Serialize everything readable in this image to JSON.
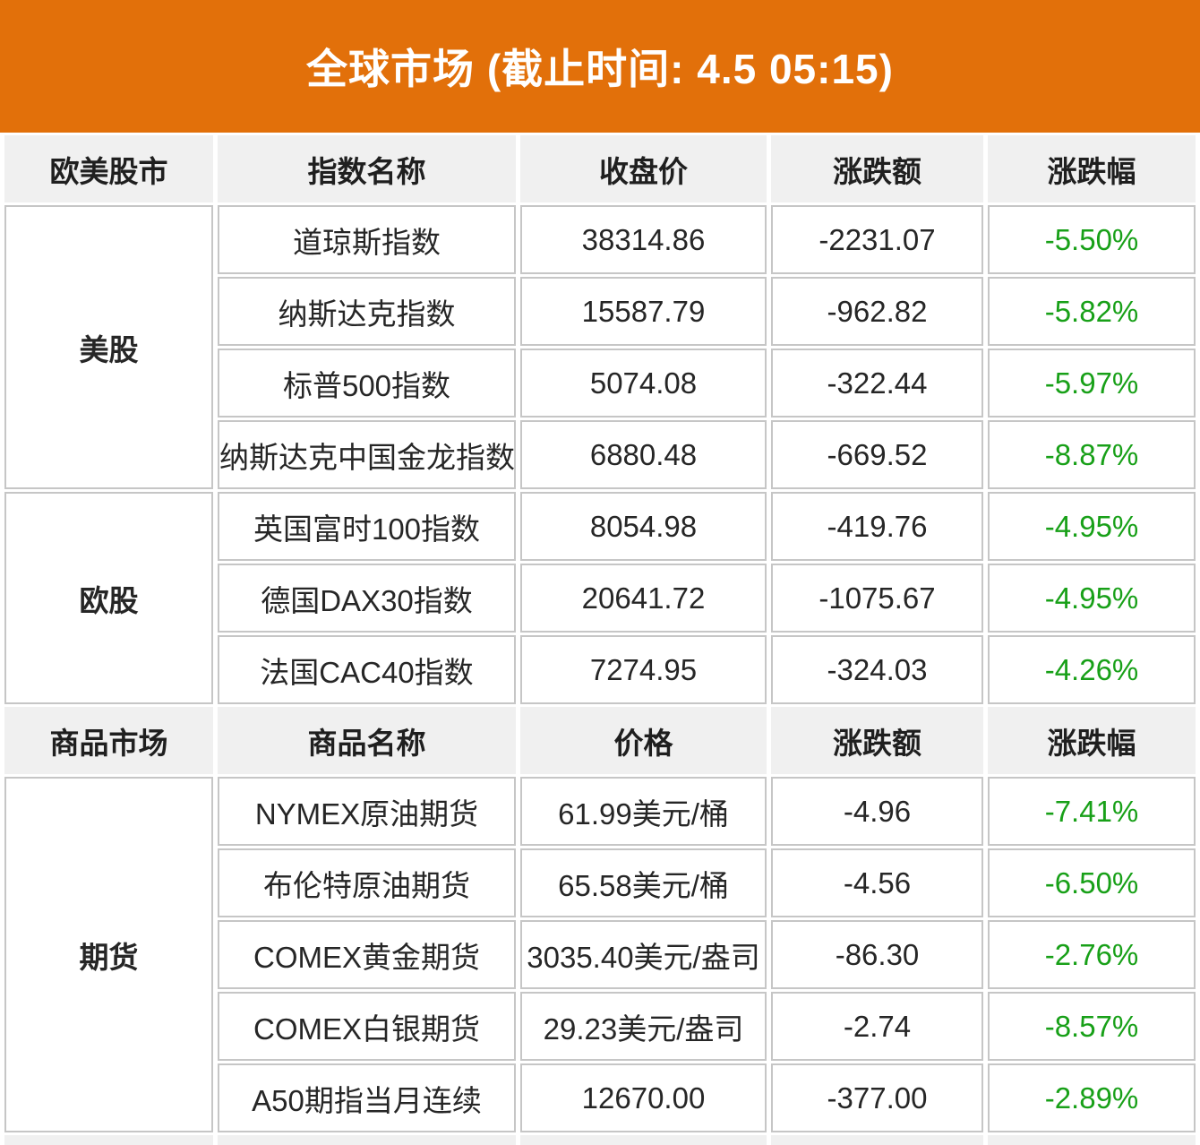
{
  "banner": {
    "title": "全球市场 (截止时间: 4.5 05:15)"
  },
  "colors": {
    "banner_bg": "#E2700A",
    "header_bg": "#F0F0F0",
    "down_green": "#18A018",
    "cell_border": "#C6C6C6",
    "text": "#262626"
  },
  "sections": [
    {
      "header": {
        "group": "欧美股市",
        "name": "指数名称",
        "price": "收盘价",
        "change": "涨跌额",
        "pct": "涨跌幅"
      },
      "groups": [
        {
          "label": "美股",
          "rows": [
            {
              "name": "道琼斯指数",
              "price": "38314.86",
              "change": "-2231.07",
              "pct": "-5.50%"
            },
            {
              "name": "纳斯达克指数",
              "price": "15587.79",
              "change": "-962.82",
              "pct": "-5.82%"
            },
            {
              "name": "标普500指数",
              "price": "5074.08",
              "change": "-322.44",
              "pct": "-5.97%"
            },
            {
              "name": "纳斯达克中国金龙指数",
              "price": "6880.48",
              "change": "-669.52",
              "pct": "-8.87%"
            }
          ]
        },
        {
          "label": "欧股",
          "rows": [
            {
              "name": "英国富时100指数",
              "price": "8054.98",
              "change": "-419.76",
              "pct": "-4.95%"
            },
            {
              "name": "德国DAX30指数",
              "price": "20641.72",
              "change": "-1075.67",
              "pct": "-4.95%"
            },
            {
              "name": "法国CAC40指数",
              "price": "7274.95",
              "change": "-324.03",
              "pct": "-4.26%"
            }
          ]
        }
      ]
    },
    {
      "header": {
        "group": "商品市场",
        "name": "商品名称",
        "price": "价格",
        "change": "涨跌额",
        "pct": "涨跌幅"
      },
      "groups": [
        {
          "label": "期货",
          "rows": [
            {
              "name": "NYMEX原油期货",
              "price": "61.99美元/桶",
              "change": "-4.96",
              "pct": "-7.41%"
            },
            {
              "name": "布伦特原油期货",
              "price": "65.58美元/桶",
              "change": "-4.56",
              "pct": "-6.50%"
            },
            {
              "name": "COMEX黄金期货",
              "price": "3035.40美元/盎司",
              "change": "-86.30",
              "pct": "-2.76%"
            },
            {
              "name": "COMEX白银期货",
              "price": "29.23美元/盎司",
              "change": "-2.74",
              "pct": "-8.57%"
            },
            {
              "name": "A50期指当月连续",
              "price": "12670.00",
              "change": "-377.00",
              "pct": "-2.89%"
            }
          ]
        }
      ]
    }
  ],
  "chart_data": {
    "type": "table",
    "title": "全球市场 (截止时间: 4.5 05:15)",
    "tables": [
      {
        "columns": [
          "欧美股市",
          "指数名称",
          "收盘价",
          "涨跌额",
          "涨跌幅"
        ],
        "rows": [
          [
            "美股",
            "道琼斯指数",
            38314.86,
            -2231.07,
            "-5.50%"
          ],
          [
            "美股",
            "纳斯达克指数",
            15587.79,
            -962.82,
            "-5.82%"
          ],
          [
            "美股",
            "标普500指数",
            5074.08,
            -322.44,
            "-5.97%"
          ],
          [
            "美股",
            "纳斯达克中国金龙指数",
            6880.48,
            -669.52,
            "-8.87%"
          ],
          [
            "欧股",
            "英国富时100指数",
            8054.98,
            -419.76,
            "-4.95%"
          ],
          [
            "欧股",
            "德国DAX30指数",
            20641.72,
            -1075.67,
            "-4.95%"
          ],
          [
            "欧股",
            "法国CAC40指数",
            7274.95,
            -324.03,
            "-4.26%"
          ]
        ]
      },
      {
        "columns": [
          "商品市场",
          "商品名称",
          "价格",
          "涨跌额",
          "涨跌幅"
        ],
        "rows": [
          [
            "期货",
            "NYMEX原油期货",
            "61.99美元/桶",
            -4.96,
            "-7.41%"
          ],
          [
            "期货",
            "布伦特原油期货",
            "65.58美元/桶",
            -4.56,
            "-6.50%"
          ],
          [
            "期货",
            "COMEX黄金期货",
            "3035.40美元/盎司",
            -86.3,
            "-2.76%"
          ],
          [
            "期货",
            "COMEX白银期货",
            "29.23美元/盎司",
            -2.74,
            "-8.57%"
          ],
          [
            "期货",
            "A50期指当月连续",
            "12670.00",
            -377.0,
            "-2.89%"
          ]
        ]
      }
    ]
  }
}
